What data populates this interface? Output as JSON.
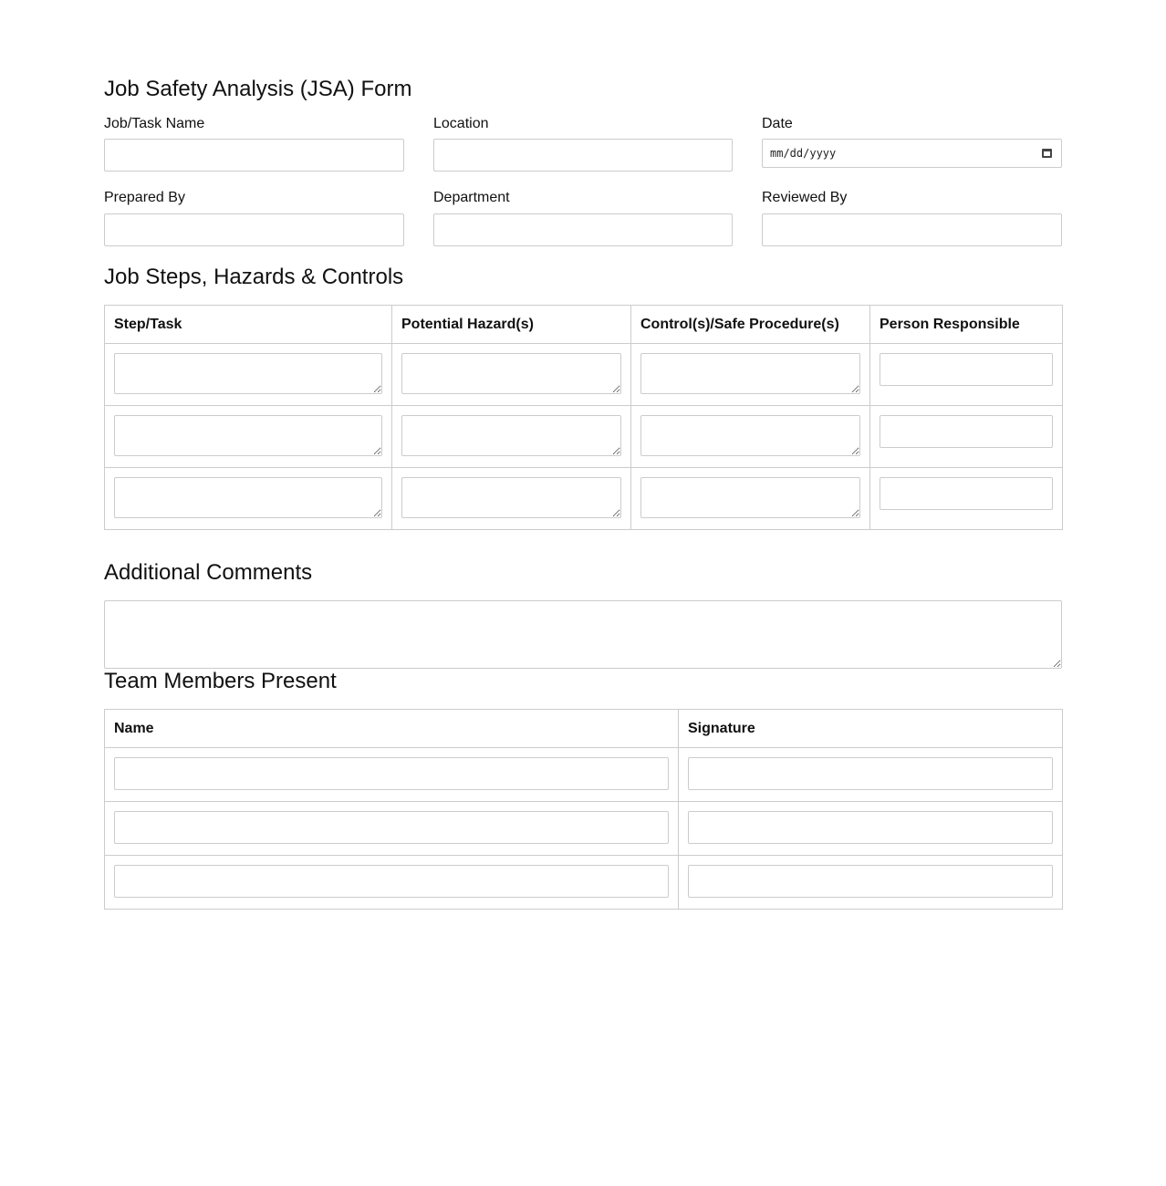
{
  "title": "Job Safety Analysis (JSA) Form",
  "fields": {
    "job_task_name": {
      "label": "Job/Task Name",
      "value": ""
    },
    "location": {
      "label": "Location",
      "value": ""
    },
    "date": {
      "label": "Date",
      "placeholder": "mm/dd/yyyy"
    },
    "prepared_by": {
      "label": "Prepared By",
      "value": ""
    },
    "department": {
      "label": "Department",
      "value": ""
    },
    "reviewed_by": {
      "label": "Reviewed By",
      "value": ""
    }
  },
  "steps_section": {
    "title": "Job Steps, Hazards & Controls",
    "columns": [
      "Step/Task",
      "Potential Hazard(s)",
      "Control(s)/Safe Procedure(s)",
      "Person Responsible"
    ],
    "rows": [
      [
        "",
        "",
        "",
        ""
      ],
      [
        "",
        "",
        "",
        ""
      ],
      [
        "",
        "",
        "",
        ""
      ]
    ]
  },
  "comments": {
    "title": "Additional Comments",
    "value": ""
  },
  "team": {
    "title": "Team Members Present",
    "columns": [
      "Name",
      "Signature"
    ],
    "rows": [
      [
        "",
        ""
      ],
      [
        "",
        ""
      ],
      [
        "",
        ""
      ]
    ]
  },
  "colors": {
    "border": "#cccccc",
    "text": "#111111",
    "background": "#ffffff"
  }
}
